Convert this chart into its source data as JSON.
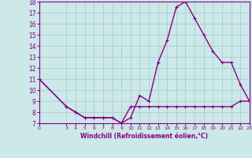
{
  "line1_x": [
    0,
    3,
    4,
    5,
    6,
    7,
    8,
    9,
    10,
    11,
    12,
    13,
    14,
    15,
    16,
    17,
    18,
    19,
    20,
    21,
    22,
    23
  ],
  "line1_y": [
    11,
    8.5,
    8.0,
    7.5,
    7.5,
    7.5,
    7.5,
    7.0,
    8.5,
    8.5,
    8.5,
    8.5,
    8.5,
    8.5,
    8.5,
    8.5,
    8.5,
    8.5,
    8.5,
    8.5,
    9.0,
    9.0
  ],
  "line2_x": [
    0,
    3,
    4,
    5,
    6,
    7,
    8,
    9,
    10,
    11,
    12,
    13,
    14,
    15,
    16,
    17,
    18,
    19,
    20,
    21,
    22,
    23
  ],
  "line2_y": [
    11,
    8.5,
    8.0,
    7.5,
    7.5,
    7.5,
    7.5,
    7.0,
    7.5,
    9.5,
    9.0,
    12.5,
    14.5,
    17.5,
    18.0,
    16.5,
    15.0,
    13.5,
    12.5,
    12.5,
    10.5,
    9.0
  ],
  "line_color": "#880088",
  "bg_color": "#cce8e8",
  "grid_color": "#aacece",
  "xlabel": "Windchill (Refroidissement éolien,°C)",
  "xticks": [
    0,
    3,
    4,
    5,
    6,
    7,
    8,
    9,
    10,
    11,
    12,
    13,
    14,
    15,
    16,
    17,
    18,
    19,
    20,
    21,
    22,
    23
  ],
  "yticks": [
    7,
    8,
    9,
    10,
    11,
    12,
    13,
    14,
    15,
    16,
    17,
    18
  ],
  "xlim": [
    0,
    23
  ],
  "ylim": [
    7,
    18
  ],
  "markersize": 2.5,
  "linewidth": 1.0
}
